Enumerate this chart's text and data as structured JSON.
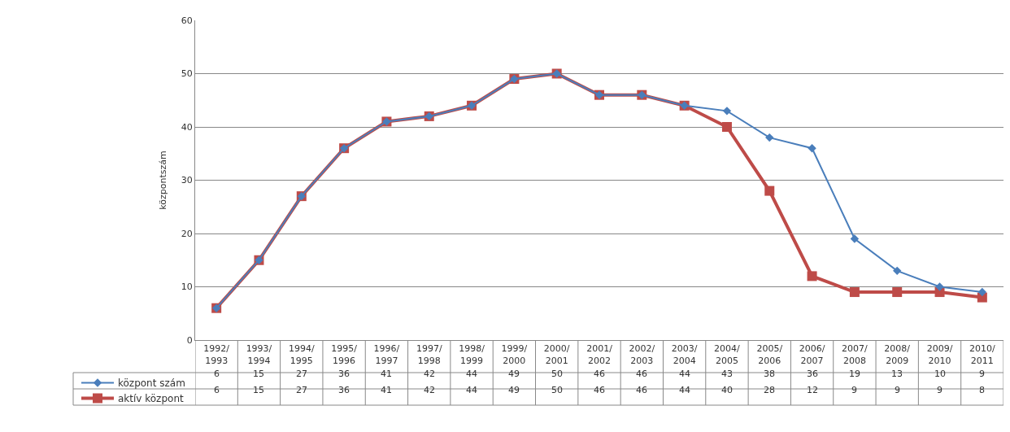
{
  "chart_data": {
    "type": "line",
    "ylabel": "központszám",
    "categories": [
      "1992/1993",
      "1993/1994",
      "1994/1995",
      "1995/1996",
      "1996/1997",
      "1997/1998",
      "1998/1999",
      "1999/2000",
      "2000/2001",
      "2001/2002",
      "2002/2003",
      "2003/2004",
      "2004/2005",
      "2005/2006",
      "2006/2007",
      "2007/2008",
      "2008/2009",
      "2009/2010",
      "2010/2011"
    ],
    "series": [
      {
        "name": "központ szám",
        "color": "#4a7ebb",
        "marker": "diamond",
        "values": [
          6,
          15,
          27,
          36,
          41,
          42,
          44,
          49,
          50,
          46,
          46,
          44,
          43,
          38,
          36,
          19,
          13,
          10,
          9
        ]
      },
      {
        "name": "aktív központ",
        "color": "#be4b48",
        "marker": "square",
        "values": [
          6,
          15,
          27,
          36,
          41,
          42,
          44,
          49,
          50,
          46,
          46,
          44,
          40,
          28,
          12,
          9,
          9,
          9,
          8
        ]
      }
    ],
    "ylim": [
      0,
      60
    ],
    "yticks": [
      0,
      10,
      20,
      30,
      40,
      50,
      60
    ],
    "grid": "y",
    "legend": "bottom left",
    "data_labels": true,
    "line_style": "solid"
  }
}
